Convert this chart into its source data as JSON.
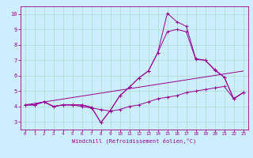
{
  "xlabel": "Windchill (Refroidissement éolien,°C)",
  "background_color": "#cceeff",
  "line_color": "#990099",
  "xlim": [
    -0.5,
    23.5
  ],
  "ylim": [
    2.5,
    10.5
  ],
  "xticks": [
    0,
    1,
    2,
    3,
    4,
    5,
    6,
    7,
    8,
    9,
    10,
    11,
    12,
    13,
    14,
    15,
    16,
    17,
    18,
    19,
    20,
    21,
    22,
    23
  ],
  "yticks": [
    3,
    4,
    5,
    6,
    7,
    8,
    9,
    10
  ],
  "grid_color": "#aaddcc",
  "line1_x": [
    0,
    1,
    2,
    3,
    4,
    5,
    6,
    7,
    8,
    9,
    10,
    11,
    12,
    13,
    14,
    15,
    16,
    17,
    18,
    19,
    20,
    21,
    22,
    23
  ],
  "line1_y": [
    4.1,
    4.1,
    4.3,
    4.0,
    4.1,
    4.1,
    4.0,
    3.9,
    3.8,
    3.7,
    3.8,
    4.0,
    4.1,
    4.3,
    4.5,
    4.6,
    4.7,
    4.9,
    5.0,
    5.1,
    5.2,
    5.3,
    4.5,
    4.9
  ],
  "line2_x": [
    0,
    1,
    2,
    3,
    4,
    5,
    6,
    7,
    8,
    9,
    10,
    11,
    12,
    13,
    14,
    15,
    16,
    17,
    18,
    19,
    20,
    21,
    22,
    23
  ],
  "line2_y": [
    4.1,
    4.1,
    4.3,
    4.0,
    4.1,
    4.1,
    4.1,
    3.95,
    2.95,
    3.75,
    4.7,
    5.25,
    5.85,
    6.3,
    7.5,
    8.85,
    9.0,
    8.85,
    7.05,
    7.0,
    6.35,
    5.9,
    4.5,
    4.9
  ],
  "line3_x": [
    0,
    1,
    2,
    3,
    4,
    5,
    6,
    7,
    8,
    9,
    10,
    11,
    12,
    13,
    14,
    15,
    16,
    17,
    18,
    19,
    20,
    21,
    22,
    23
  ],
  "line3_y": [
    4.1,
    4.1,
    4.3,
    4.0,
    4.1,
    4.1,
    4.1,
    3.95,
    2.95,
    3.75,
    4.7,
    5.25,
    5.85,
    6.3,
    7.5,
    10.05,
    9.5,
    9.2,
    7.1,
    7.0,
    6.4,
    5.9,
    4.5,
    4.9
  ],
  "line4_x": [
    0,
    23
  ],
  "line4_y": [
    4.1,
    6.3
  ]
}
